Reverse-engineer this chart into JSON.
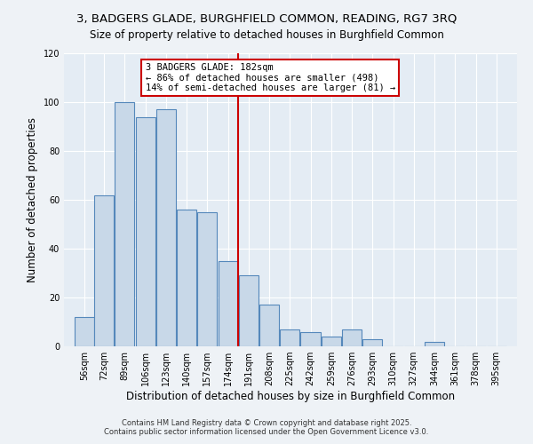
{
  "title": "3, BADGERS GLADE, BURGHFIELD COMMON, READING, RG7 3RQ",
  "subtitle": "Size of property relative to detached houses in Burghfield Common",
  "xlabel": "Distribution of detached houses by size in Burghfield Common",
  "ylabel": "Number of detached properties",
  "bar_labels": [
    "56sqm",
    "72sqm",
    "89sqm",
    "106sqm",
    "123sqm",
    "140sqm",
    "157sqm",
    "174sqm",
    "191sqm",
    "208sqm",
    "225sqm",
    "242sqm",
    "259sqm",
    "276sqm",
    "293sqm",
    "310sqm",
    "327sqm",
    "344sqm",
    "361sqm",
    "378sqm",
    "395sqm"
  ],
  "bar_values": [
    12,
    62,
    100,
    94,
    97,
    56,
    55,
    35,
    29,
    17,
    7,
    6,
    4,
    7,
    3,
    0,
    0,
    2,
    0,
    0,
    0
  ],
  "bin_width": 17,
  "bar_color": "#c8d8e8",
  "bar_edge_color": "#5588bb",
  "vline_x": 182,
  "vline_color": "#cc0000",
  "annotation_title": "3 BADGERS GLADE: 182sqm",
  "annotation_line1": "← 86% of detached houses are smaller (498)",
  "annotation_line2": "14% of semi-detached houses are larger (81) →",
  "annotation_box_color": "#ffffff",
  "annotation_box_edge_color": "#cc0000",
  "ylim": [
    0,
    120
  ],
  "yticks": [
    0,
    20,
    40,
    60,
    80,
    100,
    120
  ],
  "footnote1": "Contains HM Land Registry data © Crown copyright and database right 2025.",
  "footnote2": "Contains public sector information licensed under the Open Government Licence v3.0.",
  "bg_color": "#eef2f6",
  "plot_bg_color": "#e4ecf4",
  "grid_color": "#ffffff",
  "title_fontsize": 9.5,
  "subtitle_fontsize": 8.5,
  "axis_label_fontsize": 8.5,
  "tick_fontsize": 7,
  "annotation_fontsize": 7.5,
  "footnote_fontsize": 6
}
